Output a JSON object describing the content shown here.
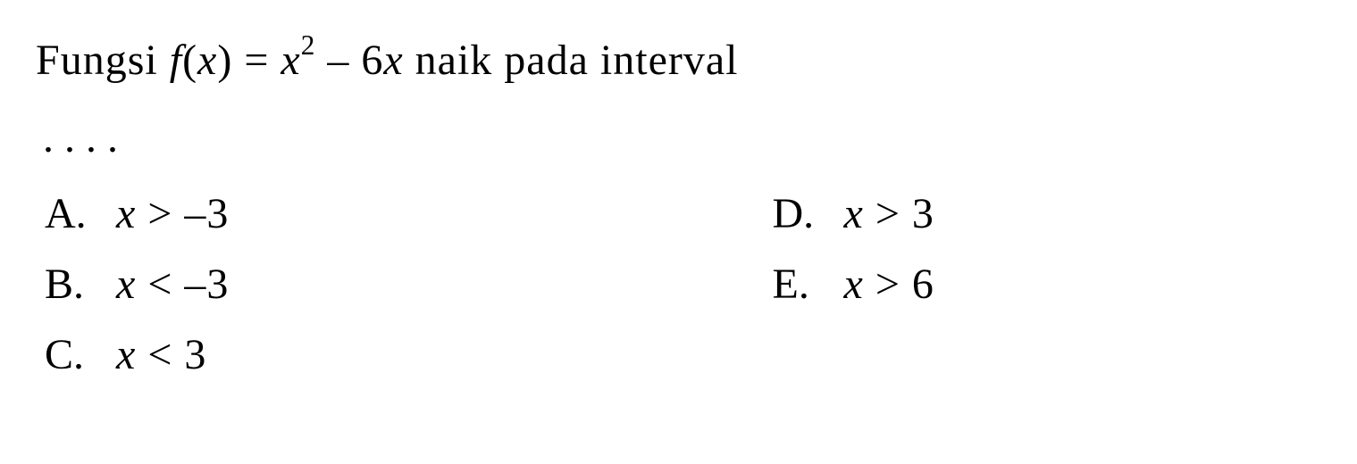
{
  "question": {
    "prefix": "Fungsi ",
    "func_name": "f",
    "var_open": "(",
    "var_letter": "x",
    "var_close": ") = ",
    "term1_var": "x",
    "term1_exp": "2",
    "middle": " – 6",
    "term2_var": "x",
    "suffix": " naik pada interval"
  },
  "dots": "....",
  "choices": {
    "a": {
      "label": "A.",
      "var": "x",
      "rel": " > –3"
    },
    "b": {
      "label": "B.",
      "var": "x",
      "rel": " < –3"
    },
    "c": {
      "label": "C.",
      "var": "x",
      "rel": " < 3"
    },
    "d": {
      "label": "D.",
      "var": "x",
      "rel": " > 3"
    },
    "e": {
      "label": "E.",
      "var": "x",
      "rel": " > 6"
    }
  },
  "style": {
    "background_color": "#ffffff",
    "text_color": "#000000",
    "font_family": "Times New Roman",
    "question_fontsize": 48,
    "choice_fontsize": 48
  }
}
